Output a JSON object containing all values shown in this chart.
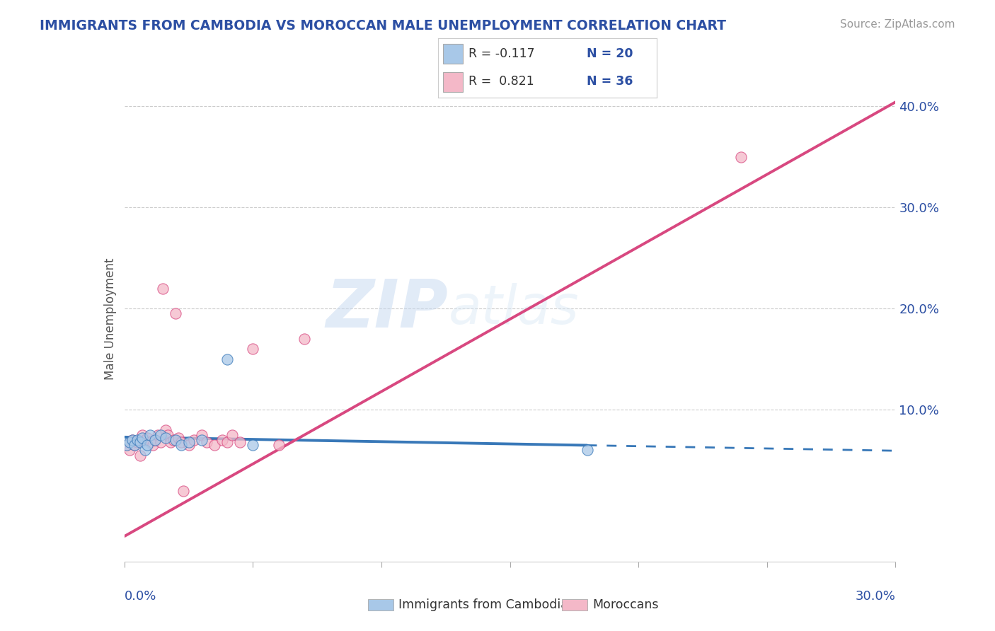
{
  "title": "IMMIGRANTS FROM CAMBODIA VS MOROCCAN MALE UNEMPLOYMENT CORRELATION CHART",
  "source": "Source: ZipAtlas.com",
  "ylabel": "Male Unemployment",
  "color_blue": "#a8c8e8",
  "color_pink": "#f4b8c8",
  "color_blue_line": "#3878b8",
  "color_pink_line": "#d84880",
  "color_title": "#2c4fa3",
  "background": "#ffffff",
  "watermark_zip": "ZIP",
  "watermark_atlas": "atlas",
  "xlim": [
    0.0,
    0.3
  ],
  "ylim": [
    -0.05,
    0.43
  ],
  "blue_scatter_x": [
    0.001,
    0.002,
    0.003,
    0.004,
    0.005,
    0.006,
    0.007,
    0.008,
    0.009,
    0.01,
    0.012,
    0.014,
    0.016,
    0.02,
    0.022,
    0.025,
    0.03,
    0.04,
    0.05,
    0.18
  ],
  "blue_scatter_y": [
    0.065,
    0.068,
    0.07,
    0.065,
    0.07,
    0.068,
    0.072,
    0.06,
    0.065,
    0.075,
    0.07,
    0.075,
    0.072,
    0.07,
    0.065,
    0.068,
    0.07,
    0.15,
    0.065,
    0.06
  ],
  "pink_scatter_x": [
    0.001,
    0.002,
    0.003,
    0.004,
    0.005,
    0.006,
    0.007,
    0.008,
    0.009,
    0.01,
    0.011,
    0.012,
    0.013,
    0.014,
    0.015,
    0.016,
    0.017,
    0.018,
    0.019,
    0.02,
    0.021,
    0.022,
    0.023,
    0.025,
    0.027,
    0.03,
    0.032,
    0.035,
    0.038,
    0.04,
    0.042,
    0.045,
    0.05,
    0.06,
    0.07,
    0.24
  ],
  "pink_scatter_y": [
    0.065,
    0.06,
    0.07,
    0.065,
    0.068,
    0.055,
    0.075,
    0.07,
    0.072,
    0.068,
    0.065,
    0.07,
    0.075,
    0.068,
    0.22,
    0.08,
    0.075,
    0.068,
    0.07,
    0.195,
    0.072,
    0.068,
    0.02,
    0.065,
    0.07,
    0.075,
    0.068,
    0.065,
    0.07,
    0.068,
    0.075,
    0.068,
    0.16,
    0.065,
    0.17,
    0.35
  ],
  "blue_line_solid_end": 0.18,
  "blue_line_dash_end": 0.3,
  "legend_r1": "R = -0.117",
  "legend_n1": "N = 20",
  "legend_r2": "R =  0.821",
  "legend_n2": "N = 36"
}
